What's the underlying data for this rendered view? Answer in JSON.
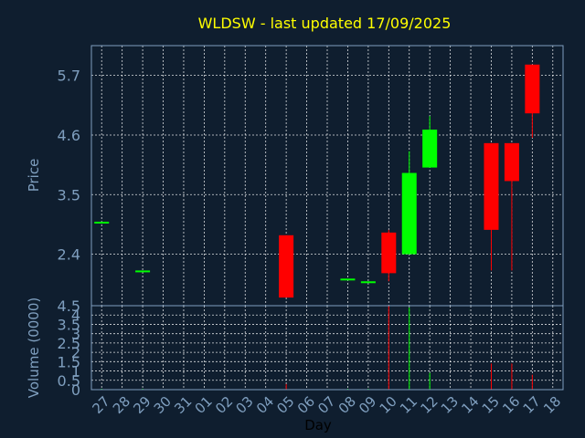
{
  "chart_data": {
    "type": "candlestick",
    "title": "WLDSW - last updated 17/09/2025",
    "xlabel": "Day",
    "price_panel": {
      "ylabel": "Price",
      "ylim": [
        1.45,
        6.25
      ],
      "yticks": [
        "2.4",
        "3.5",
        "4.6",
        "5.7"
      ],
      "ytick_values": [
        2.4,
        3.5,
        4.6,
        5.7
      ]
    },
    "volume_panel": {
      "ylabel": "Volume (0000)",
      "ylim": [
        0,
        4.5
      ],
      "yticks": [
        "0",
        "0.5",
        "1",
        "1.5",
        "2",
        "2.5",
        "3",
        "3.5",
        "4",
        "4.5"
      ],
      "ytick_values": [
        0,
        0.5,
        1,
        1.5,
        2,
        2.5,
        3,
        3.5,
        4,
        4.5
      ]
    },
    "categories": [
      "27",
      "28",
      "29",
      "30",
      "31",
      "01",
      "02",
      "03",
      "04",
      "05",
      "06",
      "07",
      "08",
      "09",
      "10",
      "11",
      "12",
      "13",
      "14",
      "15",
      "16",
      "17",
      "18"
    ],
    "candles": [
      {
        "day": "27",
        "open": 3.0,
        "high": 3.0,
        "low": 3.0,
        "close": 3.0,
        "volume": 0.05
      },
      {
        "day": "29",
        "open": 2.1,
        "high": 2.1,
        "low": 2.1,
        "close": 2.1,
        "volume": 0.05
      },
      {
        "day": "05",
        "open": 2.75,
        "high": 2.75,
        "low": 1.6,
        "close": 1.6,
        "volume": 0.3
      },
      {
        "day": "08",
        "open": 1.95,
        "high": 1.95,
        "low": 1.95,
        "close": 1.95,
        "volume": 0.05
      },
      {
        "day": "09",
        "open": 1.9,
        "high": 1.9,
        "low": 1.9,
        "close": 1.9,
        "volume": 0.05
      },
      {
        "day": "10",
        "open": 2.8,
        "high": 2.85,
        "low": 1.9,
        "close": 2.05,
        "volume": 4.5
      },
      {
        "day": "11",
        "open": 2.4,
        "high": 4.3,
        "low": 2.4,
        "close": 3.9,
        "volume": 4.4
      },
      {
        "day": "12",
        "open": 4.0,
        "high": 4.95,
        "low": 4.0,
        "close": 4.7,
        "volume": 0.9
      },
      {
        "day": "15",
        "open": 4.45,
        "high": 4.45,
        "low": 2.1,
        "close": 2.85,
        "volume": 1.4
      },
      {
        "day": "16",
        "open": 4.45,
        "high": 4.45,
        "low": 2.1,
        "close": 3.75,
        "volume": 1.4
      },
      {
        "day": "17",
        "open": 5.9,
        "high": 5.9,
        "low": 4.55,
        "close": 5.0,
        "volume": 0.8
      }
    ],
    "grid": true,
    "colors": {
      "background": "#0f1e2f",
      "grid": "#ffffff",
      "axis": "#7f9fbf",
      "title": "#ffff00",
      "up": "#00ff00",
      "down": "#ff0000"
    }
  }
}
